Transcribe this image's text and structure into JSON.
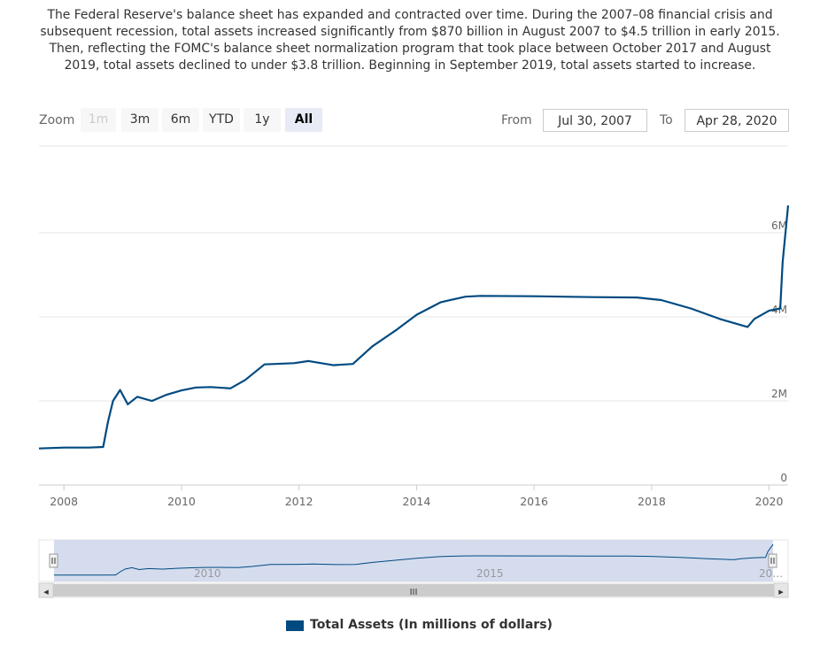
{
  "description": "The Federal Reserve's balance sheet has expanded and contracted over time. During the 2007–08 financial crisis and subsequent recession, total assets increased significantly from $870 billion in August 2007 to $4.5 trillion in early 2015. Then, reflecting the FOMC's balance sheet normalization program that took place between October 2017 and August 2019, total assets declined to under $3.8 trillion. Beginning in September 2019, total assets started to increase.",
  "toolbar": {
    "zoom_label": "Zoom",
    "buttons": [
      "1m",
      "3m",
      "6m",
      "YTD",
      "1y",
      "All"
    ],
    "disabled_button": "1m",
    "active_button": "All",
    "from_label": "From",
    "from_value": "Jul 30, 2007",
    "to_label": "To",
    "to_value": "Apr 28, 2020"
  },
  "navigator": {
    "x_labels": [
      "2010",
      "2015",
      "20…"
    ],
    "scrollbar_grip": "III",
    "left_arrow": "◂",
    "right_arrow": "▸"
  },
  "colors": {
    "series": "#004a80",
    "grid": "#e6e6e6",
    "navigator_mask": "#ccd6eb"
  },
  "chart_data": {
    "type": "line",
    "title": "",
    "xlabel": "",
    "ylabel": "",
    "x_ticks": [
      "2008",
      "2010",
      "2012",
      "2014",
      "2016",
      "2018",
      "2020"
    ],
    "y_ticks": [
      "0",
      "2M",
      "4M",
      "6M"
    ],
    "xlim": [
      "2007-07-30",
      "2020-04-28"
    ],
    "ylim": [
      0,
      8000000
    ],
    "legend_position": "bottom-center",
    "grid": true,
    "series": [
      {
        "name": "Total Assets (In millions of dollars)",
        "points": [
          [
            "2007-07-30",
            870000
          ],
          [
            "2008-01-01",
            890000
          ],
          [
            "2008-06-01",
            890000
          ],
          [
            "2008-09-01",
            905000
          ],
          [
            "2008-10-01",
            1500000
          ],
          [
            "2008-11-01",
            2000000
          ],
          [
            "2008-12-15",
            2260000
          ],
          [
            "2009-02-01",
            1920000
          ],
          [
            "2009-04-01",
            2100000
          ],
          [
            "2009-07-01",
            2000000
          ],
          [
            "2009-10-01",
            2150000
          ],
          [
            "2010-01-01",
            2250000
          ],
          [
            "2010-04-01",
            2320000
          ],
          [
            "2010-07-01",
            2330000
          ],
          [
            "2010-11-01",
            2300000
          ],
          [
            "2011-02-01",
            2500000
          ],
          [
            "2011-06-01",
            2870000
          ],
          [
            "2011-12-01",
            2900000
          ],
          [
            "2012-03-01",
            2950000
          ],
          [
            "2012-08-01",
            2850000
          ],
          [
            "2012-12-01",
            2880000
          ],
          [
            "2013-04-01",
            3300000
          ],
          [
            "2013-09-01",
            3700000
          ],
          [
            "2014-01-01",
            4050000
          ],
          [
            "2014-06-01",
            4350000
          ],
          [
            "2014-11-01",
            4480000
          ],
          [
            "2015-02-01",
            4500000
          ],
          [
            "2016-01-01",
            4490000
          ],
          [
            "2017-01-01",
            4470000
          ],
          [
            "2017-10-01",
            4460000
          ],
          [
            "2018-03-01",
            4400000
          ],
          [
            "2018-09-01",
            4200000
          ],
          [
            "2019-03-01",
            3950000
          ],
          [
            "2019-08-20",
            3760000
          ],
          [
            "2019-10-01",
            3950000
          ],
          [
            "2020-01-01",
            4150000
          ],
          [
            "2020-03-10",
            4200000
          ],
          [
            "2020-03-25",
            5300000
          ],
          [
            "2020-04-28",
            6650000
          ]
        ]
      }
    ]
  }
}
